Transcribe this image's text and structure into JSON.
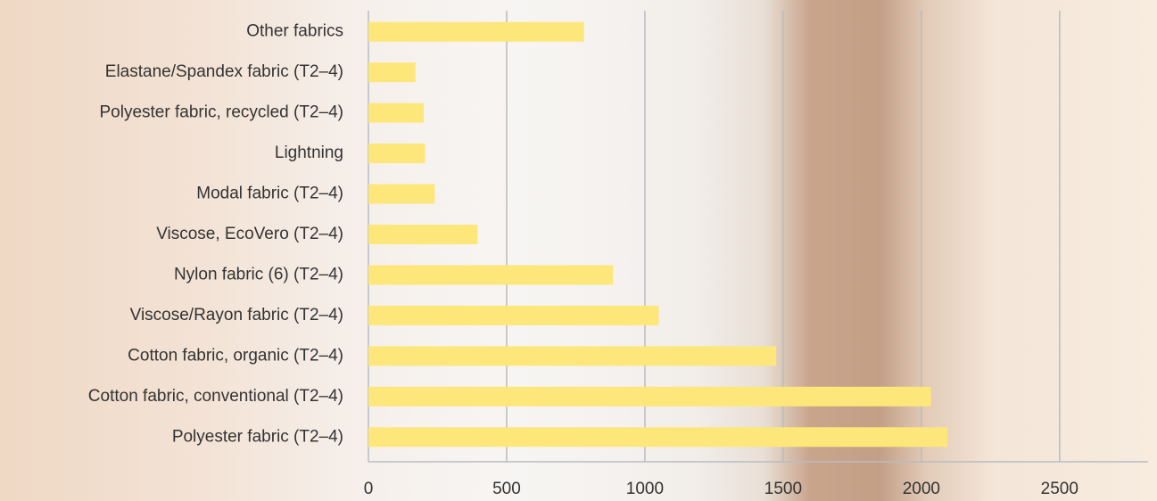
{
  "chart_data": {
    "type": "bar",
    "orientation": "horizontal",
    "categories": [
      "Other fabrics",
      "Elastane/Spandex fabric (T2–4)",
      "Polyester fabric, recycled (T2–4)",
      "Lightning",
      "Modal fabric (T2–4)",
      "Viscose, EcoVero (T2–4)",
      "Nylon fabric (6) (T2–4)",
      "Viscose/Rayon fabric (T2–4)",
      "Cotton fabric, organic (T2–4)",
      "Cotton fabric, conventional (T2–4)",
      "Polyester fabric (T2–4)"
    ],
    "values": [
      780,
      170,
      200,
      205,
      240,
      395,
      885,
      1050,
      1475,
      2035,
      2095
    ],
    "color": "#fde77a",
    "xlim": [
      0,
      2820
    ],
    "xticks": [
      0,
      500,
      1000,
      1500,
      2000,
      2500
    ],
    "grid": true
  }
}
